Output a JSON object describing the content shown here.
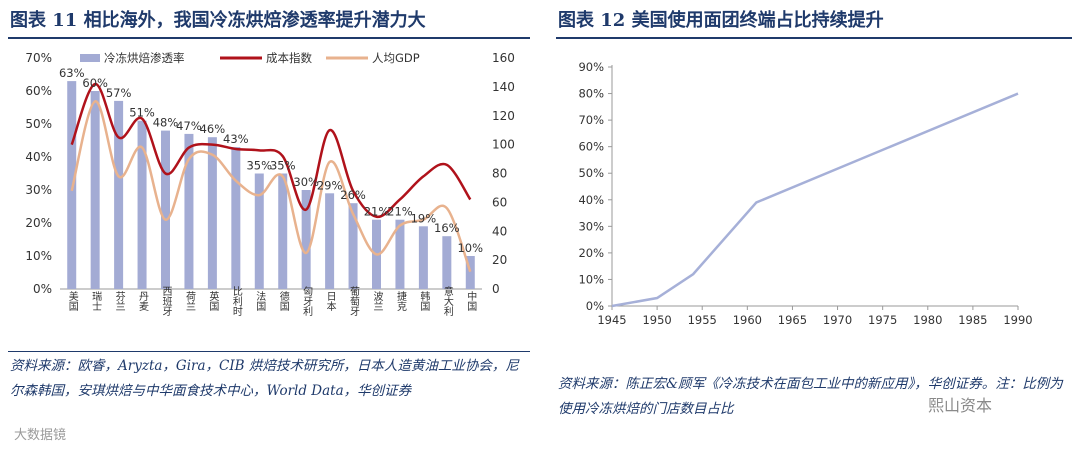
{
  "left_panel": {
    "title": "图表 11   相比海外，我国冷冻烘焙渗透率提升潜力大",
    "source": "资料来源：欧睿，Aryzta，Gira，CIB 烘焙技术研究所，日本人造黄油工业协会，尼尔森韩国，安琪烘焙与中华面食技术中心，World Data，华创证券"
  },
  "right_panel": {
    "title": "图表 12   美国使用面团终端占比持续提升",
    "source": "资料来源：陈正宏&顾军《冷冻技术在面包工业中的新应用》，华创证券。注：比例为使用冷冻烘焙的门店数目占比"
  },
  "watermarks": {
    "left": "大数据镜",
    "right": "熙山资本"
  },
  "colors": {
    "bar": "#a3abd4",
    "index_line": "#b0121b",
    "gdp_line": "#e8b28e",
    "us_line": "#a6b0d8",
    "title": "#1f3a6b"
  },
  "chart_data": [
    {
      "type": "bar",
      "title": "",
      "categories": [
        "美国",
        "瑞士",
        "芬兰",
        "丹麦",
        "西班牙",
        "荷兰",
        "英国",
        "比利时",
        "法国",
        "德国",
        "匈牙利",
        "日本",
        "葡萄牙",
        "波兰",
        "捷克",
        "韩国",
        "意大利",
        "中国"
      ],
      "series": [
        {
          "name": "冷冻烘焙渗透率",
          "type": "bar",
          "axis": "left",
          "values": [
            63,
            60,
            57,
            51,
            48,
            47,
            46,
            43,
            35,
            35,
            30,
            29,
            26,
            21,
            21,
            19,
            16,
            10
          ],
          "labels": [
            "63%",
            "60%",
            "57%",
            "51%",
            "48%",
            "47%",
            "46%",
            "43%",
            "35%",
            "35%",
            "30%",
            "29%",
            "26%",
            "21%",
            "21%",
            "19%",
            "16%",
            "10%"
          ]
        },
        {
          "name": "成本指数",
          "type": "line",
          "axis": "right",
          "values": [
            100,
            142,
            105,
            118,
            80,
            98,
            100,
            97,
            96,
            92,
            55,
            110,
            68,
            50,
            62,
            78,
            86,
            62
          ]
        },
        {
          "name": "人均GDP",
          "type": "line",
          "axis": "right",
          "values": [
            68,
            130,
            78,
            98,
            48,
            90,
            93,
            75,
            65,
            78,
            25,
            88,
            52,
            24,
            44,
            48,
            56,
            12
          ]
        }
      ],
      "ylim_left": [
        0,
        70
      ],
      "yticks_left": [
        "0%",
        "10%",
        "20%",
        "30%",
        "40%",
        "50%",
        "60%",
        "70%"
      ],
      "ylim_right": [
        0,
        160
      ],
      "yticks_right": [
        "0",
        "20",
        "40",
        "60",
        "80",
        "100",
        "120",
        "140",
        "160"
      ],
      "legend": [
        "冷冻烘焙渗透率",
        "成本指数",
        "人均GDP"
      ],
      "legend_position": "top"
    },
    {
      "type": "line",
      "title": "",
      "x": [
        1945,
        1950,
        1954,
        1961,
        1990
      ],
      "values": [
        0,
        3,
        12,
        39,
        80
      ],
      "xticks": [
        "1945",
        "1950",
        "1955",
        "1960",
        "1965",
        "1970",
        "1975",
        "1980",
        "1985",
        "1990"
      ],
      "yticks": [
        "0%",
        "10%",
        "20%",
        "30%",
        "40%",
        "50%",
        "60%",
        "70%",
        "80%",
        "90%"
      ],
      "xlim": [
        1945,
        1990
      ],
      "ylim": [
        0,
        90
      ],
      "grid": false
    }
  ]
}
